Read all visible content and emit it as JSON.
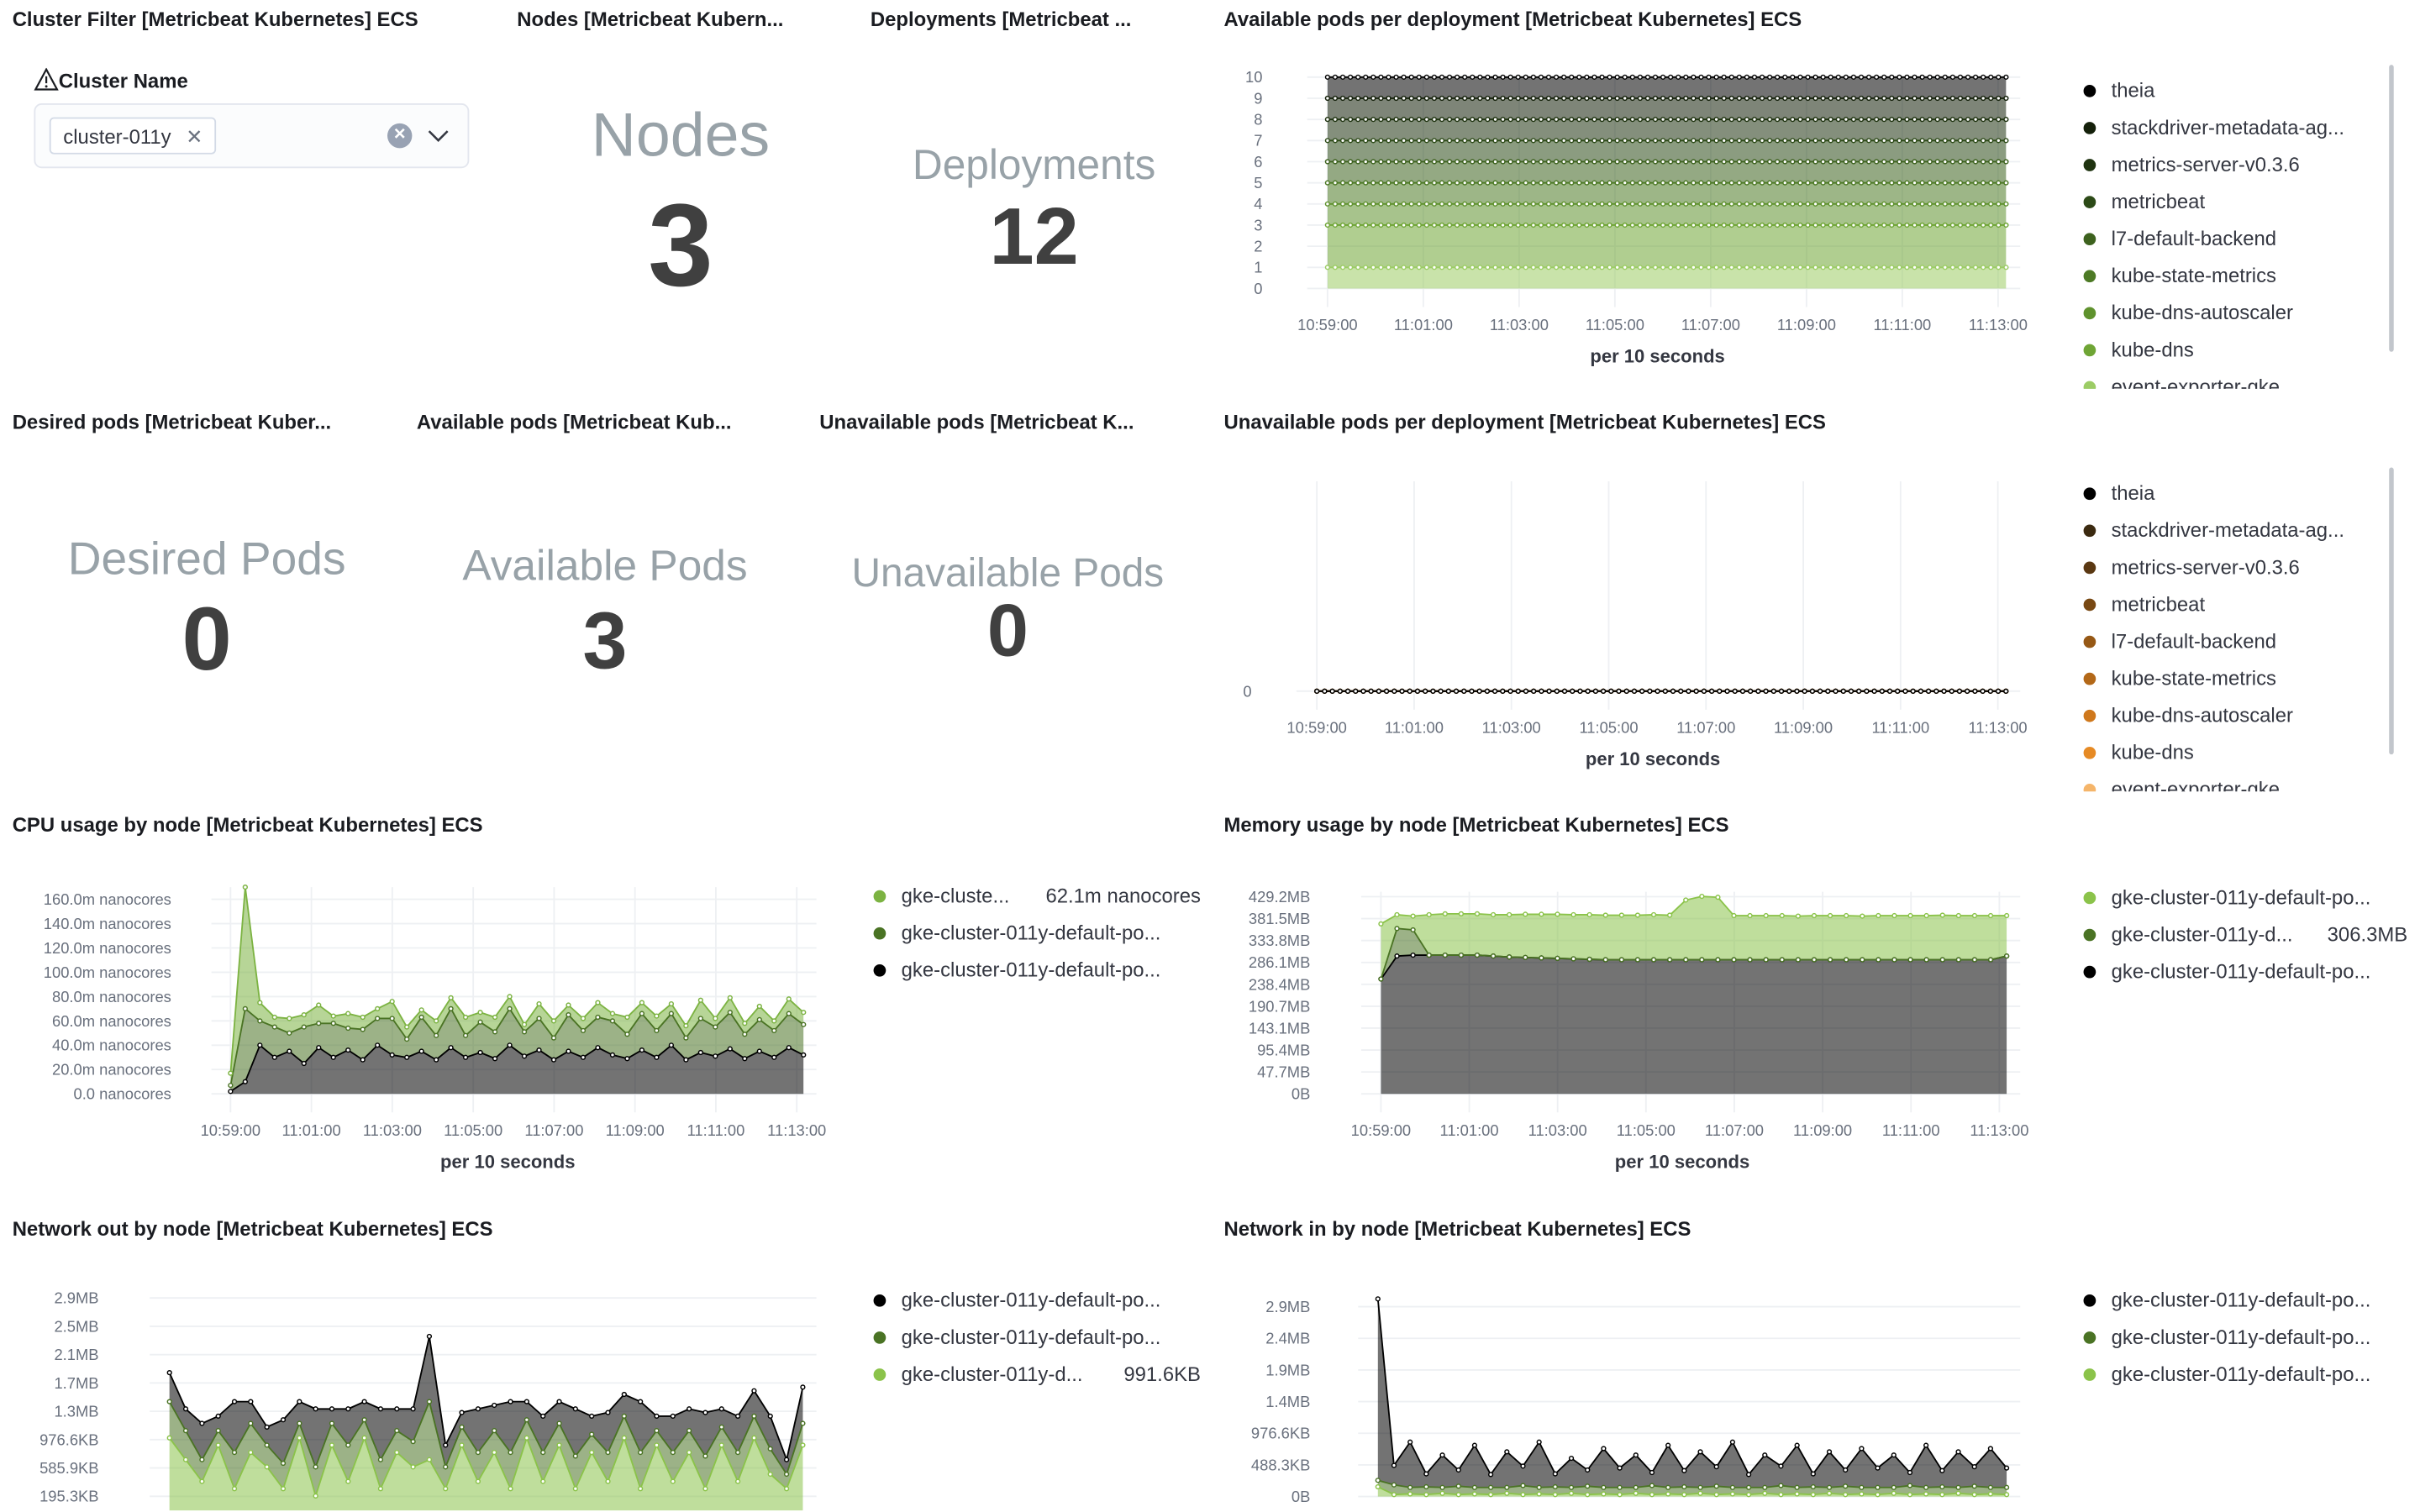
{
  "panels": {
    "cluster_filter": {
      "title": "Cluster Filter [Metricbeat Kubernetes] ECS",
      "label": "Cluster Name",
      "selected": "cluster-011y",
      "icons": [
        "warning-icon",
        "close-icon",
        "clear-icon",
        "chevron-down-icon"
      ]
    },
    "nodes": {
      "title": "Nodes [Metricbeat Kubern...",
      "label": "Nodes",
      "value": "3"
    },
    "deployments": {
      "title": "Deployments [Metricbeat ...",
      "label": "Deployments",
      "value": "12"
    },
    "desired": {
      "title": "Desired pods [Metricbeat Kuber...",
      "label": "Desired Pods",
      "value": "0"
    },
    "available": {
      "title": "Available pods [Metricbeat Kub...",
      "label": "Available Pods",
      "value": "3"
    },
    "unavailable": {
      "title": "Unavailable pods [Metricbeat K...",
      "label": "Unavailable Pods",
      "value": "0"
    }
  },
  "chart_data": [
    {
      "id": "avail",
      "type": "area",
      "stacked": true,
      "title": "Available pods per deployment [Metricbeat Kubernetes] ECS",
      "xlabel": "per 10 seconds",
      "xticks": [
        "10:59:00",
        "11:01:00",
        "11:03:00",
        "11:05:00",
        "11:07:00",
        "11:09:00",
        "11:11:00",
        "11:13:00"
      ],
      "xlim": [
        "10:58:50",
        "11:13:20"
      ],
      "ylim": [
        0,
        10
      ],
      "yticks": [
        {
          "v": 0,
          "l": "0"
        },
        {
          "v": 1,
          "l": "1"
        },
        {
          "v": 2,
          "l": "2"
        },
        {
          "v": 3,
          "l": "3"
        },
        {
          "v": 4,
          "l": "4"
        },
        {
          "v": 5,
          "l": "5"
        },
        {
          "v": 6,
          "l": "6"
        },
        {
          "v": 7,
          "l": "7"
        },
        {
          "v": 8,
          "l": "8"
        },
        {
          "v": 9,
          "l": "9"
        },
        {
          "v": 10,
          "l": "10"
        }
      ],
      "series": [
        {
          "name": "theia",
          "color": "#000000",
          "constant": 1
        },
        {
          "name": "stackdriver-metadata-ag...",
          "color": "#14200a",
          "constant": 1
        },
        {
          "name": "metrics-server-v0.3.6",
          "color": "#1f3310",
          "constant": 1
        },
        {
          "name": "metricbeat",
          "color": "#2c4a17",
          "constant": 1
        },
        {
          "name": "l7-default-backend",
          "color": "#3d621e",
          "constant": 1
        },
        {
          "name": "kube-state-metrics",
          "color": "#4d7a25",
          "constant": 1
        },
        {
          "name": "kube-dns-autoscaler",
          "color": "#5f922d",
          "constant": 1
        },
        {
          "name": "kube-dns",
          "color": "#6fa535",
          "constant": 2
        },
        {
          "name": "event-exporter-gke",
          "color": "#9ccc65",
          "constant": 1
        }
      ]
    },
    {
      "id": "unavail",
      "type": "area",
      "stacked": true,
      "title": "Unavailable pods per deployment [Metricbeat Kubernetes] ECS",
      "xlabel": "per 10 seconds",
      "xticks": [
        "10:59:00",
        "11:01:00",
        "11:03:00",
        "11:05:00",
        "11:07:00",
        "11:09:00",
        "11:11:00",
        "11:13:00"
      ],
      "xlim": [
        "10:58:50",
        "11:13:20"
      ],
      "ylim": [
        0,
        1
      ],
      "yticks": [
        {
          "v": 0,
          "l": "0"
        }
      ],
      "series": [
        {
          "name": "theia",
          "color": "#000000",
          "constant": 0
        },
        {
          "name": "stackdriver-metadata-ag...",
          "color": "#3b2a10",
          "constant": 0
        },
        {
          "name": "metrics-server-v0.3.6",
          "color": "#5a3812",
          "constant": 0
        },
        {
          "name": "metricbeat",
          "color": "#784813",
          "constant": 0
        },
        {
          "name": "l7-default-backend",
          "color": "#965815",
          "constant": 0
        },
        {
          "name": "kube-state-metrics",
          "color": "#b36818",
          "constant": 0
        },
        {
          "name": "kube-dns-autoscaler",
          "color": "#cf781c",
          "constant": 0
        },
        {
          "name": "kube-dns",
          "color": "#e68a24",
          "constant": 0
        },
        {
          "name": "event-exporter-gke",
          "color": "#f5b56a",
          "constant": 0
        }
      ]
    },
    {
      "id": "cpu",
      "type": "area",
      "stacked": true,
      "title": "CPU usage by node [Metricbeat Kubernetes] ECS",
      "xlabel": "per 10 seconds",
      "xticks": [
        "10:59:00",
        "11:01:00",
        "11:03:00",
        "11:05:00",
        "11:07:00",
        "11:09:00",
        "11:11:00",
        "11:13:00"
      ],
      "xlim": [
        "10:58:50",
        "11:13:20"
      ],
      "ylim": [
        0,
        170
      ],
      "yticks": [
        {
          "v": 0,
          "l": "0.0 nanocores"
        },
        {
          "v": 20,
          "l": "20.0m nanocores"
        },
        {
          "v": 40,
          "l": "40.0m nanocores"
        },
        {
          "v": 60,
          "l": "60.0m nanocores"
        },
        {
          "v": 80,
          "l": "80.0m nanocores"
        },
        {
          "v": 100,
          "l": "100.0m nanocores"
        },
        {
          "v": 120,
          "l": "120.0m nanocores"
        },
        {
          "v": 140,
          "l": "140.0m nanocores"
        },
        {
          "v": 160,
          "l": "160.0m nanocores"
        }
      ],
      "series": [
        {
          "name": "gke-cluste...",
          "value_label": "62.1m nanocores",
          "color": "#7cb342",
          "values": [
            10,
            100,
            15,
            8,
            12,
            10,
            15,
            6,
            12,
            10,
            8,
            14,
            10,
            6,
            12,
            9,
            15,
            8,
            12,
            10,
            6,
            12,
            14,
            8,
            10,
            12,
            6,
            14,
            9,
            12,
            8,
            10,
            15,
            7,
            12,
            9,
            11,
            8,
            12,
            10
          ]
        },
        {
          "name": "gke-cluster-011y-default-po...",
          "color": "#4a7324",
          "values": [
            5,
            60,
            20,
            25,
            15,
            30,
            20,
            28,
            18,
            25,
            22,
            30,
            15,
            28,
            20,
            32,
            18,
            25,
            22,
            30,
            20,
            26,
            18,
            30,
            22,
            25,
            28,
            20,
            30,
            22,
            26,
            18,
            28,
            24,
            30,
            20,
            26,
            22,
            28,
            25
          ]
        },
        {
          "name": "gke-cluster-011y-default-po...",
          "color": "#000000",
          "values": [
            2,
            10,
            40,
            30,
            35,
            25,
            38,
            30,
            36,
            28,
            40,
            32,
            30,
            35,
            28,
            38,
            30,
            34,
            29,
            40,
            31,
            36,
            28,
            35,
            30,
            38,
            32,
            29,
            36,
            30,
            40,
            28,
            34,
            31,
            37,
            29,
            35,
            30,
            38,
            32
          ]
        }
      ]
    },
    {
      "id": "mem",
      "type": "area",
      "stacked": true,
      "title": "Memory usage by node [Metricbeat Kubernetes] ECS",
      "xlabel": "per 10 seconds",
      "xticks": [
        "10:59:00",
        "11:01:00",
        "11:03:00",
        "11:05:00",
        "11:07:00",
        "11:09:00",
        "11:11:00",
        "11:13:00"
      ],
      "xlim": [
        "10:58:50",
        "11:13:20"
      ],
      "ylim": [
        0,
        440
      ],
      "yticks": [
        {
          "v": 0,
          "l": "0B"
        },
        {
          "v": 47.7,
          "l": "47.7MB"
        },
        {
          "v": 95.4,
          "l": "95.4MB"
        },
        {
          "v": 143.1,
          "l": "143.1MB"
        },
        {
          "v": 190.7,
          "l": "190.7MB"
        },
        {
          "v": 238.4,
          "l": "238.4MB"
        },
        {
          "v": 286.1,
          "l": "286.1MB"
        },
        {
          "v": 333.8,
          "l": "333.8MB"
        },
        {
          "v": 381.5,
          "l": "381.5MB"
        },
        {
          "v": 429.2,
          "l": "429.2MB"
        }
      ],
      "series": [
        {
          "name": "gke-cluster-011y-default-po...",
          "color": "#8bc34a",
          "values": [
            120,
            30,
            30,
            88,
            90,
            90,
            90,
            90,
            92,
            94,
            95,
            96,
            96,
            97,
            97,
            97,
            97,
            98,
            97,
            130,
            138,
            136,
            96,
            96,
            96,
            96,
            95,
            96,
            96,
            96,
            95,
            96,
            96,
            96,
            96,
            97,
            96,
            96,
            96,
            88
          ]
        },
        {
          "name": "gke-cluster-011y-d...",
          "value_label": "306.3MB",
          "color": "#4a7324",
          "values": [
            0,
            60,
            55,
            0,
            0,
            0,
            0,
            0,
            0,
            0,
            0,
            0,
            0,
            0,
            0,
            0,
            0,
            0,
            0,
            0,
            0,
            0,
            0,
            0,
            0,
            0,
            0,
            0,
            0,
            0,
            0,
            0,
            0,
            0,
            0,
            0,
            0,
            0,
            0,
            0
          ]
        },
        {
          "name": "gke-cluster-011y-default-po...",
          "color": "#000000",
          "values": [
            250,
            300,
            302,
            302,
            302,
            302,
            302,
            300,
            298,
            297,
            296,
            295,
            294,
            293,
            292,
            292,
            292,
            292,
            292,
            292,
            292,
            292,
            292,
            292,
            292,
            292,
            292,
            292,
            292,
            292,
            292,
            292,
            292,
            292,
            292,
            292,
            292,
            292,
            292,
            300
          ]
        }
      ]
    },
    {
      "id": "netout",
      "type": "area",
      "stacked": true,
      "title": "Network out by node [Metricbeat Kubernetes] ECS",
      "xlabel": "",
      "xticks": [],
      "xlim": [
        "10:58:50",
        "11:13:20"
      ],
      "ylim": [
        0,
        3000
      ],
      "yticks": [
        {
          "v": 195.3,
          "l": "195.3KB"
        },
        {
          "v": 585.9,
          "l": "585.9KB"
        },
        {
          "v": 976.6,
          "l": "976.6KB"
        },
        {
          "v": 1367.2,
          "l": "1.3MB"
        },
        {
          "v": 1757.8,
          "l": "1.7MB"
        },
        {
          "v": 2148.4,
          "l": "2.1MB"
        },
        {
          "v": 2539.1,
          "l": "2.5MB"
        },
        {
          "v": 2929.7,
          "l": "2.9MB"
        }
      ],
      "series": [
        {
          "name": "gke-cluster-011y-default-po...",
          "color": "#000000",
          "values": [
            400,
            300,
            500,
            200,
            700,
            300,
            250,
            600,
            300,
            800,
            200,
            500,
            250,
            700,
            300,
            450,
            900,
            300,
            200,
            600,
            350,
            700,
            250,
            500,
            300,
            650,
            250,
            550,
            300,
            700,
            200,
            500,
            300,
            600,
            250,
            500,
            350,
            450,
            200,
            500
          ]
        },
        {
          "name": "gke-cluster-011y-default-po...",
          "color": "#4a7324",
          "values": [
            500,
            400,
            300,
            200,
            500,
            400,
            300,
            350,
            200,
            400,
            300,
            500,
            250,
            400,
            300,
            350,
            800,
            300,
            250,
            400,
            300,
            500,
            250,
            400,
            300,
            450,
            250,
            400,
            300,
            500,
            200,
            400,
            300,
            450,
            250,
            400,
            300,
            350,
            200,
            300
          ]
        },
        {
          "name": "gke-cluster-011y-d...",
          "value_label": "991.6KB",
          "color": "#8bc34a",
          "values": [
            1000,
            700,
            400,
            900,
            300,
            800,
            600,
            300,
            1000,
            200,
            900,
            400,
            1000,
            300,
            800,
            600,
            700,
            300,
            900,
            400,
            800,
            300,
            1000,
            400,
            900,
            300,
            800,
            400,
            1000,
            300,
            900,
            400,
            800,
            300,
            900,
            400,
            1000,
            500,
            300,
            900
          ]
        }
      ]
    },
    {
      "id": "netin",
      "type": "area",
      "stacked": true,
      "title": "Network in by node [Metricbeat Kubernetes] ECS",
      "xlabel": "",
      "xticks": [],
      "xlim": [
        "10:58:50",
        "11:13:20"
      ],
      "ylim": [
        0,
        3000
      ],
      "yticks": [
        {
          "v": 0,
          "l": "0B"
        },
        {
          "v": 488.3,
          "l": "488.3KB"
        },
        {
          "v": 976.6,
          "l": "976.6KB"
        },
        {
          "v": 1464.8,
          "l": "1.4MB"
        },
        {
          "v": 1953.1,
          "l": "1.9MB"
        },
        {
          "v": 2441.4,
          "l": "2.4MB"
        },
        {
          "v": 2929.7,
          "l": "2.9MB"
        }
      ],
      "series": [
        {
          "name": "gke-cluster-011y-default-po...",
          "color": "#000000",
          "values": [
            2800,
            300,
            700,
            200,
            500,
            250,
            650,
            200,
            550,
            300,
            700,
            200,
            450,
            250,
            600,
            300,
            500,
            200,
            650,
            250,
            550,
            300,
            700,
            200,
            500,
            300,
            650,
            200,
            550,
            250,
            600,
            300,
            500,
            200,
            650,
            250,
            550,
            300,
            600,
            300
          ]
        },
        {
          "name": "gke-cluster-011y-default-po...",
          "color": "#4a7324",
          "values": [
            100,
            150,
            100,
            120,
            90,
            130,
            100,
            110,
            90,
            140,
            100,
            120,
            90,
            130,
            100,
            110,
            90,
            140,
            100,
            120,
            90,
            130,
            100,
            110,
            90,
            140,
            100,
            120,
            90,
            130,
            100,
            110,
            90,
            140,
            100,
            120,
            90,
            130,
            100,
            110
          ]
        },
        {
          "name": "gke-cluster-011y-default-po...",
          "color": "#8bc34a",
          "values": [
            150,
            30,
            40,
            30,
            50,
            30,
            40,
            30,
            50,
            30,
            40,
            30,
            50,
            30,
            40,
            30,
            50,
            30,
            40,
            30,
            50,
            30,
            40,
            30,
            50,
            30,
            40,
            30,
            50,
            30,
            40,
            30,
            50,
            30,
            40,
            30,
            50,
            30,
            40,
            30
          ]
        }
      ]
    }
  ]
}
